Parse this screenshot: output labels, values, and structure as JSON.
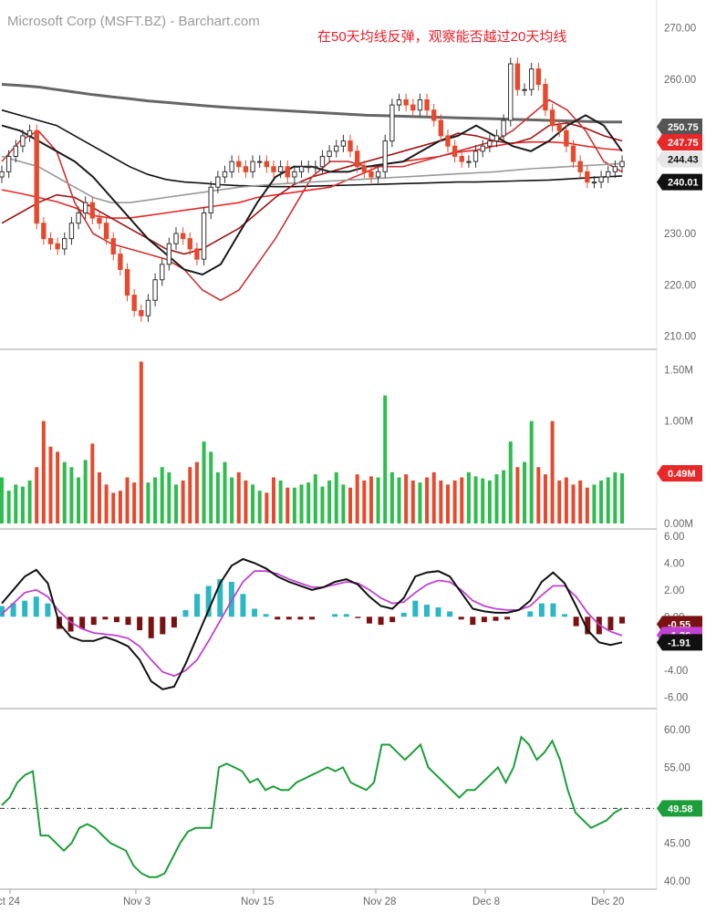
{
  "chart_data": [
    {
      "type": "candlestick",
      "title": "Microsoft Corp (MSFT.BZ) - Barchart.com",
      "annotation": "在50天均线反弹，观察能否越过20天均线",
      "ylim": [
        208,
        274
      ],
      "yticks": [
        "270.00",
        "260.00",
        "250.00",
        "240.00",
        "230.00",
        "220.00",
        "210.00"
      ],
      "ytick_values": [
        270,
        260,
        250,
        240,
        230,
        220,
        210
      ],
      "close": [
        242,
        245,
        247,
        249,
        250,
        232,
        229,
        228,
        227,
        229,
        232,
        234,
        236,
        233,
        232,
        229,
        226,
        223,
        218,
        215,
        214,
        217,
        221,
        224,
        228,
        230,
        229,
        227,
        225,
        234,
        239,
        241,
        242,
        244,
        243,
        242,
        244,
        244,
        243,
        242,
        243,
        241,
        242,
        243,
        243,
        243,
        245,
        246,
        247,
        248,
        246,
        243,
        242,
        241,
        242,
        248,
        255,
        256,
        255,
        254,
        256,
        254,
        252,
        249,
        247,
        245,
        244,
        244,
        246,
        247,
        248,
        249,
        252,
        263,
        258,
        258,
        262,
        259,
        254,
        251,
        250,
        247,
        244,
        242,
        240,
        240,
        241,
        242,
        243,
        244
      ],
      "price_badges": [
        {
          "label": "250.75",
          "value": 250.75,
          "color": "#555555"
        },
        {
          "label": "247.75",
          "value": 247.75,
          "color": "#e62828"
        },
        {
          "label": "244.43",
          "value": 244.43,
          "color": "#e6e6e6"
        },
        {
          "label": "240.01",
          "value": 240.01,
          "color": "#111111"
        }
      ],
      "moving_averages": [
        {
          "color": "#666666",
          "values": [
            259,
            258.8,
            258.5,
            258.0,
            257.5,
            257.0,
            256.6,
            256.2,
            255.8,
            255.5,
            255.2,
            254.9,
            254.6,
            254.4,
            254.2,
            254.0,
            253.8,
            253.6,
            253.4,
            253.2,
            253.0,
            252.9,
            252.8,
            252.7,
            252.6,
            252.5,
            252.4,
            252.3,
            252.2,
            252.1,
            252.0,
            251.9,
            251.8,
            251.7,
            251.7
          ]
        },
        {
          "color": "#111111",
          "values": [
            254,
            253,
            252,
            251,
            249,
            247,
            245,
            243,
            241.5,
            240.5,
            240,
            239.8,
            239.5,
            239.3,
            239.2,
            239.1,
            239.1,
            239.2,
            239.3,
            239.4,
            239.5,
            239.6,
            239.7,
            239.8,
            239.9,
            240.0,
            240.0,
            240.1,
            240.2,
            240.3,
            240.4,
            240.6,
            240.8,
            241.0,
            241.2
          ]
        },
        {
          "color": "#e62828",
          "values": [
            238.5,
            237.8,
            237.0,
            236.2,
            235.0,
            233.5,
            233.0,
            233.0,
            233.5,
            234.0,
            234.5,
            235.0,
            235.5,
            236.0,
            237.0,
            237.5,
            238.0,
            238.5,
            239.0,
            240.5,
            242.0,
            243.5,
            244.0,
            244.5,
            245.0,
            245.8,
            246.2,
            247.0,
            247.6,
            247.8,
            247.8,
            247.6,
            247.0,
            246.5,
            246.2
          ]
        },
        {
          "color": "#a01414",
          "values": [
            232,
            234,
            236,
            237.5,
            237,
            235,
            233,
            231,
            229,
            227,
            226,
            227,
            229,
            231,
            234,
            237,
            239.5,
            241,
            242,
            243,
            244,
            245,
            246,
            247,
            248,
            249.5,
            249,
            248,
            247.5,
            248.5,
            251,
            251.5,
            250.5,
            249,
            248
          ]
        },
        {
          "color": "#cc3333",
          "values": [
            244,
            248,
            250,
            246,
            236,
            230,
            228,
            227,
            226,
            225,
            223,
            219,
            217,
            219,
            224,
            229,
            235,
            241,
            244,
            244,
            243,
            243,
            243,
            244,
            245,
            246,
            247,
            248,
            250,
            253,
            256,
            254,
            250,
            244,
            242
          ]
        },
        {
          "color": "#999999",
          "values": [
            245,
            244,
            243,
            241,
            239,
            237,
            236,
            236,
            236.5,
            237,
            237.5,
            238,
            238.5,
            239,
            239.3,
            239.6,
            239.8,
            240,
            240.2,
            240.4,
            240.6,
            240.8,
            241,
            241.2,
            241.4,
            241.6,
            241.8,
            242,
            242.3,
            242.6,
            242.8,
            243,
            243.2,
            243.4,
            243.6
          ]
        }
      ],
      "ma_bounce_line_color": "#1a1a1a",
      "ma_bounce_values": [
        251,
        250,
        248,
        246,
        244,
        241,
        237,
        233,
        229,
        226,
        223,
        222,
        224,
        230,
        236,
        241,
        243,
        243,
        242,
        242,
        243,
        243.5,
        244,
        246,
        248,
        249,
        251,
        249,
        247,
        246,
        248,
        251,
        253,
        251,
        246
      ]
    },
    {
      "type": "bar",
      "series_name": "volume",
      "yticks": [
        "1.50M",
        "1.00M",
        "0.50M",
        "0.00M"
      ],
      "ytick_values": [
        1.5,
        1.0,
        0.5,
        0.0
      ],
      "ylim": [
        0,
        1.62
      ],
      "badge": {
        "label": "0.49M",
        "value": 0.49,
        "color": "#e62828"
      },
      "values": [
        0.45,
        0.32,
        0.38,
        0.36,
        0.42,
        0.55,
        1.0,
        0.75,
        0.7,
        0.6,
        0.55,
        0.45,
        0.62,
        0.78,
        0.5,
        0.38,
        0.3,
        0.32,
        0.45,
        0.4,
        1.58,
        0.4,
        0.45,
        0.55,
        0.5,
        0.38,
        0.42,
        0.55,
        0.6,
        0.8,
        0.7,
        0.5,
        0.6,
        0.45,
        0.5,
        0.42,
        0.38,
        0.32,
        0.3,
        0.45,
        0.42,
        0.35,
        0.35,
        0.38,
        0.4,
        0.48,
        0.36,
        0.42,
        0.5,
        0.38,
        0.35,
        0.48,
        0.42,
        0.46,
        0.45,
        1.25,
        0.5,
        0.45,
        0.48,
        0.42,
        0.4,
        0.45,
        0.5,
        0.42,
        0.38,
        0.42,
        0.45,
        0.5,
        0.46,
        0.44,
        0.42,
        0.48,
        0.52,
        0.8,
        0.55,
        0.6,
        1.0,
        0.55,
        0.48,
        1.0,
        0.42,
        0.45,
        0.38,
        0.42,
        0.35,
        0.38,
        0.42,
        0.45,
        0.5,
        0.49
      ],
      "up_color": "#2ebd4e",
      "down_color": "#e64a2e"
    },
    {
      "type": "macd",
      "yticks": [
        "6.00",
        "4.00",
        "2.00",
        "0.00",
        "-4.00",
        "-6.00"
      ],
      "ytick_values": [
        6,
        4,
        2,
        0,
        -4,
        -6
      ],
      "ylim": [
        -6.5,
        6.2
      ],
      "badges": [
        {
          "label": "-0.55",
          "value": -0.55,
          "color": "#7a1212"
        },
        {
          "label": "-1.36",
          "value": -1.36,
          "color": "#c042d0"
        },
        {
          "label": "-1.91",
          "value": -1.91,
          "color": "#111111"
        }
      ],
      "macd_line": [
        1,
        2,
        3,
        3.5,
        2.5,
        -0.5,
        -1.5,
        -1.8,
        -1.8,
        -1.5,
        -1.8,
        -2.2,
        -3.2,
        -4.8,
        -5.4,
        -5.2,
        -3.5,
        -1.5,
        0.5,
        2.5,
        3.8,
        4.3,
        4.0,
        3.6,
        3.0,
        2.6,
        2.3,
        2.0,
        2.2,
        2.6,
        2.8,
        2.4,
        1.5,
        0.8,
        0.6,
        1.4,
        3.0,
        3.3,
        3.4,
        3.0,
        1.8,
        0.6,
        0.4,
        0.3,
        0.3,
        0.5,
        1.2,
        2.6,
        3.3,
        2.5,
        0.8,
        -1.0,
        -1.9,
        -2.1,
        -1.9
      ],
      "signal_line": [
        0.2,
        1.0,
        1.8,
        2.0,
        1.5,
        0.4,
        -0.4,
        -0.9,
        -1.2,
        -1.3,
        -1.4,
        -1.6,
        -2.2,
        -3.2,
        -4.1,
        -4.4,
        -4.0,
        -3.2,
        -1.8,
        -0.3,
        1.2,
        2.6,
        3.4,
        3.4,
        3.2,
        2.8,
        2.5,
        2.2,
        2.2,
        2.4,
        2.6,
        2.5,
        2.0,
        1.4,
        1.0,
        1.1,
        1.8,
        2.4,
        2.7,
        2.6,
        2.0,
        1.2,
        0.8,
        0.6,
        0.5,
        0.5,
        0.8,
        1.6,
        2.3,
        2.3,
        1.5,
        0.3,
        -0.6,
        -1.1,
        -1.4
      ],
      "histogram": [
        0.8,
        1.0,
        1.2,
        1.5,
        1.0,
        -0.9,
        -1.1,
        -0.9,
        -0.6,
        -0.2,
        -0.4,
        -0.6,
        -1.0,
        -1.6,
        -1.3,
        -0.8,
        0.5,
        1.7,
        2.3,
        2.8,
        2.6,
        1.7,
        0.6,
        0.2,
        -0.2,
        -0.2,
        -0.2,
        -0.2,
        0.0,
        0.2,
        0.2,
        -0.1,
        -0.5,
        -0.6,
        -0.4,
        0.3,
        1.2,
        0.9,
        0.7,
        0.4,
        -0.2,
        -0.6,
        -0.4,
        -0.3,
        -0.2,
        0.0,
        0.4,
        1.0,
        1.0,
        0.2,
        -0.7,
        -1.3,
        -1.3,
        -1.0,
        -0.5
      ],
      "line_colors": {
        "macd": "#111111",
        "signal": "#c042d0",
        "hist_up": "#2bb7c4",
        "hist_down": "#7a1212"
      }
    },
    {
      "type": "line",
      "series_name": "RSI",
      "yticks": [
        "60.00",
        "55.00",
        "50.00",
        "45.00",
        "40.00"
      ],
      "ytick_values": [
        60,
        55,
        50,
        45,
        40
      ],
      "ylim": [
        39.5,
        61.8
      ],
      "reference": 49.58,
      "badge": {
        "label": "49.58",
        "value": 49.58,
        "color": "#1e9e3a"
      },
      "values": [
        50,
        51,
        53,
        54,
        54.5,
        46,
        46,
        45,
        44,
        45,
        47,
        47.5,
        47,
        46,
        45,
        44.5,
        44,
        42,
        41,
        40.5,
        40.5,
        41,
        43,
        45,
        46.5,
        47,
        47,
        47,
        55,
        55.5,
        55,
        54.5,
        53,
        53.5,
        52,
        52.5,
        52,
        52,
        53,
        53.5,
        54,
        54.5,
        55,
        54.5,
        55,
        53,
        52.5,
        52,
        53,
        58,
        58,
        57,
        56,
        57,
        58,
        55,
        54,
        53,
        52,
        51,
        52,
        52,
        53,
        54,
        55,
        53,
        55,
        59,
        58,
        56,
        57,
        58.5,
        56,
        52,
        49,
        48,
        47,
        47.5,
        48,
        49,
        49.58
      ],
      "line_color": "#1e9e3a"
    }
  ],
  "x_axis": {
    "tick_labels": [
      "ct 24",
      "Nov 3",
      "Nov 15",
      "Nov 28",
      "Dec 8",
      "Dec 20"
    ]
  }
}
